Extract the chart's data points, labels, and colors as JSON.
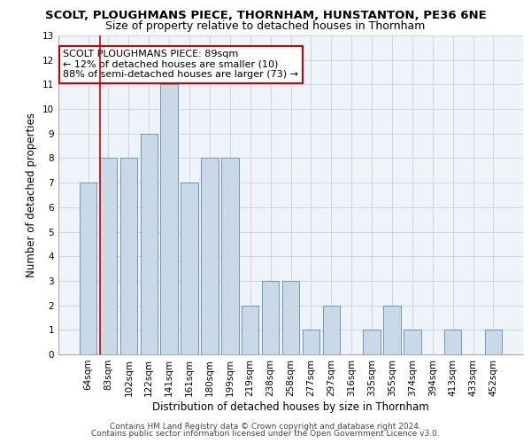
{
  "title": "SCOLT, PLOUGHMANS PIECE, THORNHAM, HUNSTANTON, PE36 6NE",
  "subtitle": "Size of property relative to detached houses in Thornham",
  "xlabel": "Distribution of detached houses by size in Thornham",
  "ylabel": "Number of detached properties",
  "categories": [
    "64sqm",
    "83sqm",
    "102sqm",
    "122sqm",
    "141sqm",
    "161sqm",
    "180sqm",
    "199sqm",
    "219sqm",
    "238sqm",
    "258sqm",
    "277sqm",
    "297sqm",
    "316sqm",
    "335sqm",
    "355sqm",
    "374sqm",
    "394sqm",
    "413sqm",
    "433sqm",
    "452sqm"
  ],
  "values": [
    7,
    8,
    8,
    9,
    11,
    7,
    8,
    8,
    2,
    3,
    3,
    1,
    2,
    0,
    1,
    2,
    1,
    0,
    1,
    0,
    1
  ],
  "bar_color": "#c9d9e8",
  "bar_edge_color": "#5a8ab5",
  "highlight_bar_index": 1,
  "highlight_line_color": "#cc0000",
  "annotation_text": "SCOLT PLOUGHMANS PIECE: 89sqm\n← 12% of detached houses are smaller (10)\n88% of semi-detached houses are larger (73) →",
  "annotation_box_color": "#ffffff",
  "annotation_box_edge_color": "#cc0000",
  "ylim": [
    0,
    13
  ],
  "yticks": [
    0,
    1,
    2,
    3,
    4,
    5,
    6,
    7,
    8,
    9,
    10,
    11,
    12,
    13
  ],
  "grid_color": "#c8d8e8",
  "background_color": "#eef4fa",
  "footer_line1": "Contains HM Land Registry data © Crown copyright and database right 2024.",
  "footer_line2": "Contains public sector information licensed under the Open Government Licence v3.0.",
  "title_fontsize": 9.5,
  "subtitle_fontsize": 9,
  "axis_label_fontsize": 8.5,
  "tick_fontsize": 7.5,
  "annotation_fontsize": 8,
  "footer_fontsize": 6.5
}
